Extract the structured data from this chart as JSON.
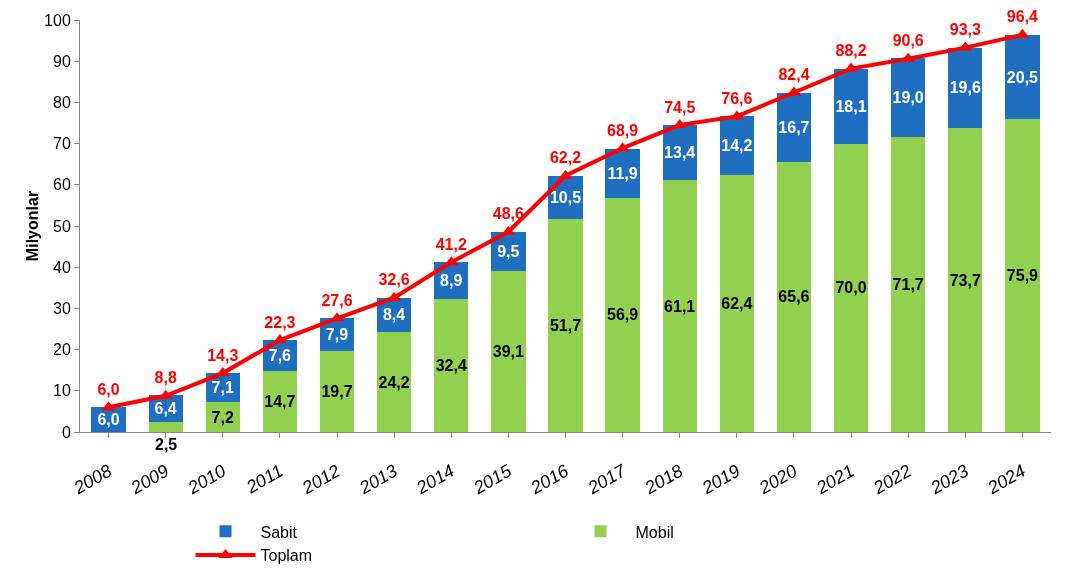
{
  "chart_data": {
    "type": "bar",
    "stacked": true,
    "ylabel": "Milyonlar",
    "categories": [
      "2008",
      "2009",
      "2010",
      "2011",
      "2012",
      "2013",
      "2014",
      "2015",
      "2016",
      "2017",
      "2018",
      "2019",
      "2020",
      "2021",
      "2022",
      "2023",
      "2024"
    ],
    "series": [
      {
        "name": "Mobil",
        "color": "#92d050",
        "values": [
          null,
          2.5,
          7.2,
          14.7,
          19.7,
          24.2,
          32.4,
          39.1,
          51.7,
          56.9,
          61.1,
          62.4,
          65.6,
          70.0,
          71.7,
          73.7,
          75.9
        ],
        "value_labels": [
          null,
          "2,5",
          "7,2",
          "14,7",
          "19,7",
          "24,2",
          "32,4",
          "39,1",
          "51,7",
          "56,9",
          "61,1",
          "62,4",
          "65,6",
          "70,0",
          "71,7",
          "73,7",
          "75,9"
        ]
      },
      {
        "name": "Sabit",
        "color": "#1f6fc0",
        "values": [
          6.0,
          6.4,
          7.1,
          7.6,
          7.9,
          8.4,
          8.9,
          9.5,
          10.5,
          11.9,
          13.4,
          14.2,
          16.7,
          18.1,
          19.0,
          19.6,
          20.5
        ],
        "value_labels": [
          "6,0",
          "6,4",
          "7,1",
          "7,6",
          "7,9",
          "8,4",
          "8,9",
          "9,5",
          "10,5",
          "11,9",
          "13,4",
          "14,2",
          "16,7",
          "18,1",
          "19,0",
          "19,6",
          "20,5"
        ]
      },
      {
        "name": "Toplam",
        "type": "line",
        "color": "#ff0000",
        "marker": "triangle",
        "values": [
          6.0,
          8.8,
          14.3,
          22.3,
          27.6,
          32.6,
          41.2,
          48.6,
          62.2,
          68.9,
          74.5,
          76.6,
          82.4,
          88.2,
          90.6,
          93.3,
          96.4
        ],
        "value_labels": [
          "6,0",
          "8,8",
          "14,3",
          "22,3",
          "27,6",
          "32,6",
          "41,2",
          "48,6",
          "62,2",
          "68,9",
          "74,5",
          "76,6",
          "82,4",
          "88,2",
          "90,6",
          "93,3",
          "96,4"
        ]
      }
    ],
    "ylim": [
      0,
      100
    ],
    "yticks": [
      0,
      10,
      20,
      30,
      40,
      50,
      60,
      70,
      80,
      90,
      100
    ],
    "grid": false,
    "legend": "bottom"
  }
}
